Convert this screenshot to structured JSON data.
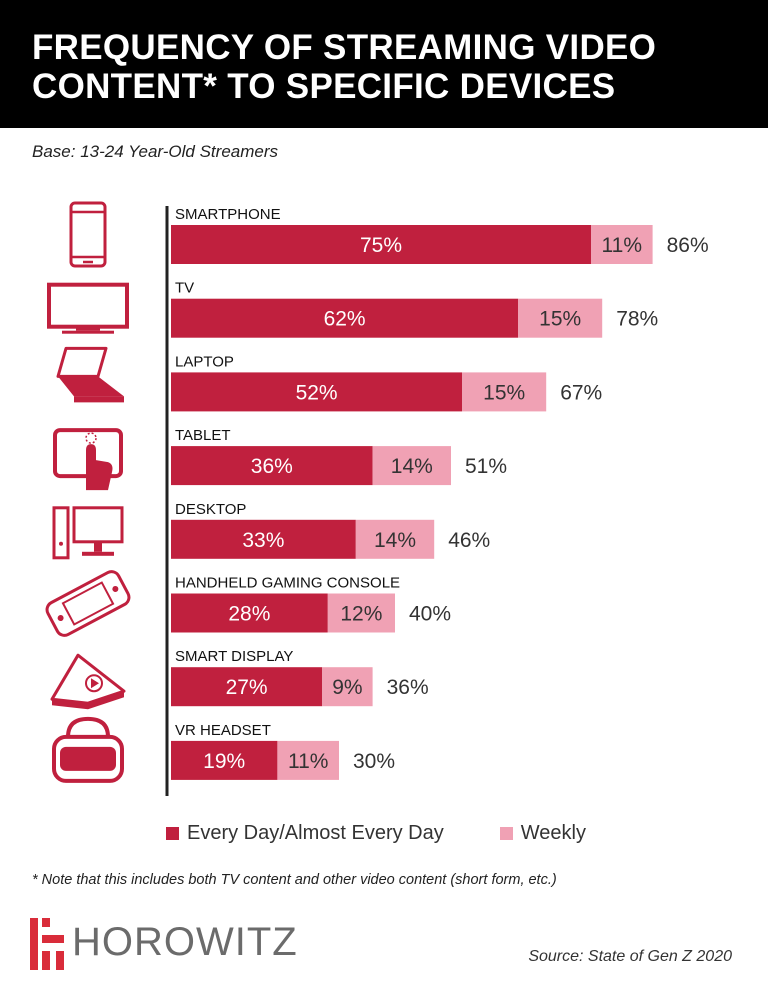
{
  "header": {
    "title_line1": "FREQUENCY OF STREAMING VIDEO",
    "title_line2": "CONTENT* TO SPECIFIC DEVICES"
  },
  "subtitle": "Base: 13-24 Year-Old Streamers",
  "colors": {
    "daily": "#c0203e",
    "weekly": "#f0a1b4",
    "header_bg": "#000000",
    "logo_red": "#d92c3a"
  },
  "chart_data": {
    "type": "bar",
    "orientation": "horizontal",
    "stacked": true,
    "categories": [
      "SMARTPHONE",
      "TV",
      "LAPTOP",
      "TABLET",
      "DESKTOP",
      "HANDHELD GAMING CONSOLE",
      "SMART DISPLAY",
      "VR HEADSET"
    ],
    "icons": [
      "smartphone-icon",
      "tv-icon",
      "laptop-icon",
      "tablet-icon",
      "desktop-icon",
      "handheld-console-icon",
      "smart-display-icon",
      "vr-headset-icon"
    ],
    "series": [
      {
        "name": "Every Day/Almost Every Day",
        "values": [
          75,
          62,
          52,
          36,
          33,
          28,
          27,
          19
        ],
        "labels": [
          "75%",
          "62%",
          "52%",
          "36%",
          "33%",
          "28%",
          "27%",
          "19%"
        ]
      },
      {
        "name": "Weekly",
        "values": [
          11,
          15,
          15,
          14,
          14,
          12,
          9,
          11
        ],
        "labels": [
          "11%",
          "15%",
          "15%",
          "14%",
          "14%",
          "12%",
          "9%",
          "11%"
        ]
      }
    ],
    "totals": [
      86,
      78,
      67,
      51,
      46,
      40,
      36,
      30
    ],
    "total_labels": [
      "86%",
      "78%",
      "67%",
      "51%",
      "46%",
      "40%",
      "36%",
      "30%"
    ],
    "xlim": [
      0,
      100
    ],
    "grid": false,
    "legend_position": "bottom"
  },
  "legend": {
    "daily_label": "Every Day/Almost Every Day",
    "weekly_label": "Weekly"
  },
  "note": "* Note that this includes both TV content and other video content (short form, etc.)",
  "logo": {
    "text": "HOROWITZ"
  },
  "source": "Source: State of Gen Z 2020"
}
